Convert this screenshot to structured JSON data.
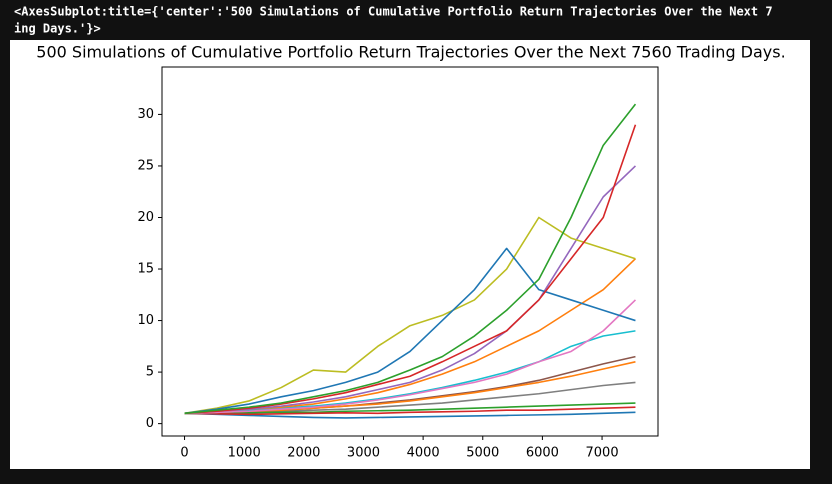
{
  "output_text": [
    "<AxesSubplot:title={'center':'500 Simulations of Cumulative Portfolio Return Trajectories Over the Next 7",
    "ing Days.'}>"
  ],
  "chart_data": {
    "type": "line",
    "title": "500 Simulations of Cumulative Portfolio Return Trajectories Over the Next 7560 Trading Days.",
    "x": [
      0,
      540,
      1080,
      1620,
      2160,
      2700,
      3240,
      3780,
      4320,
      4860,
      5400,
      5940,
      6480,
      7020,
      7560
    ],
    "xlim": [
      -378,
      7938
    ],
    "xticks": [
      0,
      1000,
      2000,
      3000,
      4000,
      5000,
      6000,
      7000
    ],
    "ylim": [
      -1.2,
      34.6
    ],
    "yticks": [
      0,
      5,
      10,
      15,
      20,
      25,
      30
    ],
    "series": [
      {
        "color": "#1f77b4",
        "values": [
          1,
          0.9,
          0.8,
          0.7,
          0.6,
          0.55,
          0.6,
          0.65,
          0.7,
          0.75,
          0.8,
          0.85,
          0.9,
          1.0,
          1.1
        ]
      },
      {
        "color": "#7f7f7f",
        "values": [
          1,
          1.05,
          1.1,
          1.2,
          1.3,
          1.4,
          1.6,
          1.8,
          2.0,
          2.3,
          2.6,
          2.9,
          3.3,
          3.7,
          4.0
        ]
      },
      {
        "color": "#2ca02c",
        "values": [
          1,
          1.0,
          1.05,
          1.1,
          1.1,
          1.2,
          1.25,
          1.3,
          1.4,
          1.5,
          1.6,
          1.7,
          1.8,
          1.9,
          2.0
        ]
      },
      {
        "color": "#d62728",
        "values": [
          1,
          0.95,
          0.9,
          0.95,
          1.0,
          1.05,
          1.0,
          1.1,
          1.15,
          1.2,
          1.3,
          1.3,
          1.4,
          1.5,
          1.6
        ]
      },
      {
        "color": "#8c564b",
        "values": [
          1,
          1.1,
          1.2,
          1.3,
          1.5,
          1.7,
          2.0,
          2.3,
          2.7,
          3.1,
          3.6,
          4.2,
          5,
          5.8,
          6.5
        ]
      },
      {
        "color": "#ff7f0e",
        "values": [
          1,
          1.1,
          1.2,
          1.3,
          1.5,
          1.7,
          1.9,
          2.2,
          2.6,
          3.0,
          3.5,
          4.0,
          4.6,
          5.3,
          6.0
        ]
      },
      {
        "color": "#17becf",
        "values": [
          1,
          1.1,
          1.3,
          1.5,
          1.7,
          2.0,
          2.4,
          2.9,
          3.5,
          4.2,
          5.0,
          6,
          7.5,
          8.5,
          9
        ]
      },
      {
        "color": "#e377c2",
        "values": [
          1,
          1.1,
          1.2,
          1.4,
          1.6,
          1.9,
          2.3,
          2.8,
          3.4,
          4.0,
          4.8,
          6,
          7,
          9,
          12
        ]
      },
      {
        "color": "#ff7f0e",
        "values": [
          1,
          1.2,
          1.4,
          1.6,
          1.9,
          2.4,
          3.0,
          3.8,
          4.8,
          6.0,
          7.5,
          9,
          11,
          13,
          16
        ]
      },
      {
        "color": "#9467bd",
        "values": [
          1,
          1.2,
          1.4,
          1.7,
          2.1,
          2.6,
          3.3,
          4.0,
          5.2,
          6.8,
          9,
          12,
          17,
          22,
          25
        ]
      },
      {
        "color": "#bcbd22",
        "values": [
          1,
          1.5,
          2.2,
          3.5,
          5.2,
          5.0,
          7.5,
          9.5,
          10.5,
          12,
          15,
          20,
          18,
          17,
          16
        ]
      },
      {
        "color": "#1f77b4",
        "values": [
          1,
          1.4,
          1.9,
          2.6,
          3.2,
          4.0,
          5.0,
          7.0,
          10,
          13,
          17,
          13,
          12,
          11,
          10
        ]
      },
      {
        "color": "#d62728",
        "values": [
          1,
          1.2,
          1.5,
          1.9,
          2.4,
          3.0,
          3.8,
          4.6,
          6.0,
          7.5,
          9.0,
          12,
          16,
          20,
          29
        ]
      },
      {
        "color": "#2ca02c",
        "values": [
          1,
          1.3,
          1.6,
          2.0,
          2.6,
          3.2,
          4.0,
          5.2,
          6.5,
          8.5,
          11,
          14,
          20,
          27,
          31
        ]
      }
    ]
  }
}
